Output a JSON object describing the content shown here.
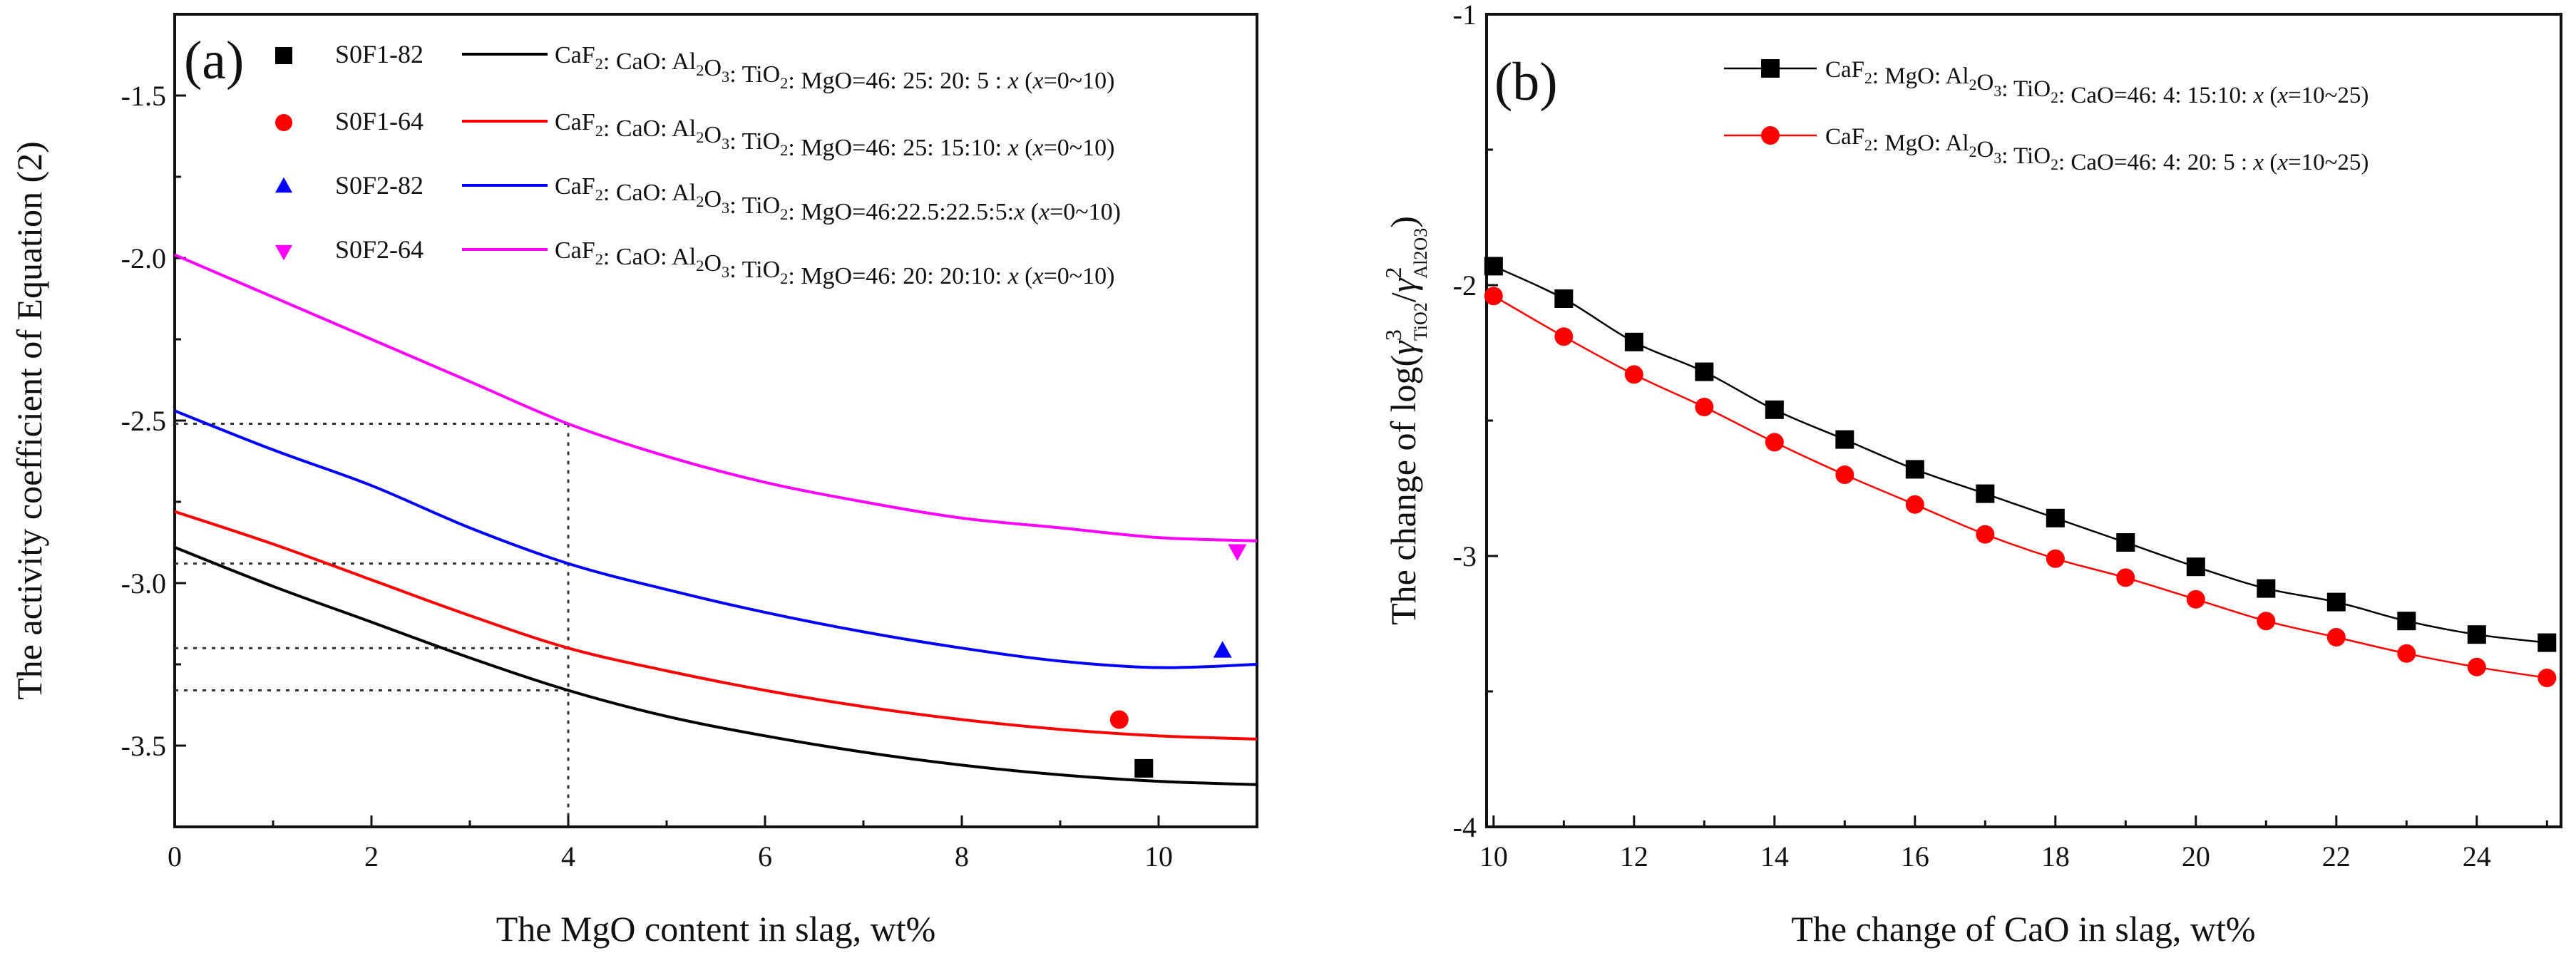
{
  "figure": {
    "panels": [
      "(a)",
      "(b)"
    ]
  },
  "chart_data": [
    {
      "type": "line",
      "panel": "(a)",
      "xlabel": "The MgO content in slag, wt%",
      "ylabel": "The activity coefficient of Equation (2)",
      "xlim": [
        0,
        11
      ],
      "ylim": [
        -3.75,
        -1.25
      ],
      "xticks": [
        0,
        2,
        4,
        6,
        8,
        10
      ],
      "yticks": [
        -3.5,
        -3.0,
        -2.5,
        -2.0,
        -1.5
      ],
      "ytick_labels": [
        "-3.5",
        "-3.0",
        "-2.5",
        "-2.0",
        "-1.5"
      ],
      "series": [
        {
          "name": "CaF2: CaO: Al2O3: TiO2: MgO=46: 25: 20: 5 : x (x=0~10)",
          "legend_parts": [
            "CaF",
            "2",
            ": CaO: Al",
            "2",
            "O",
            "3",
            ": TiO",
            "2",
            ": MgO=46: 25: 20: 5 : ",
            "x",
            " (",
            "x",
            "=0~10)"
          ],
          "color": "#000000",
          "x": [
            0,
            1,
            2,
            3,
            4,
            5,
            6,
            7,
            8,
            9,
            10,
            11
          ],
          "y": [
            -2.89,
            -3.01,
            -3.12,
            -3.23,
            -3.33,
            -3.41,
            -3.47,
            -3.52,
            -3.56,
            -3.59,
            -3.61,
            -3.62
          ]
        },
        {
          "name": "CaF2: CaO: Al2O3: TiO2: MgO=46: 25: 15:10: x (x=0~10)",
          "legend_parts": [
            "CaF",
            "2",
            ": CaO: Al",
            "2",
            "O",
            "3",
            ": TiO",
            "2",
            ": MgO=46: 25: 15:10: ",
            "x",
            " (",
            "x",
            "=0~10)"
          ],
          "color": "#ff0000",
          "x": [
            0,
            1,
            2,
            3,
            4,
            5,
            6,
            7,
            8,
            9,
            10,
            11
          ],
          "y": [
            -2.78,
            -2.88,
            -2.99,
            -3.1,
            -3.2,
            -3.27,
            -3.33,
            -3.38,
            -3.42,
            -3.45,
            -3.47,
            -3.48
          ]
        },
        {
          "name": "CaF2: CaO: Al2O3: TiO2: MgO=46:22.5:22.5:5:x (x=0~10)",
          "legend_parts": [
            "CaF",
            "2",
            ": CaO: Al",
            "2",
            "O",
            "3",
            ": TiO",
            "2",
            ": MgO=46:22.5:22.5:5:",
            "x",
            " (",
            "x",
            "=0~10)"
          ],
          "color": "#0000ff",
          "x": [
            0,
            1,
            2,
            3,
            4,
            5,
            6,
            7,
            8,
            9,
            10,
            11
          ],
          "y": [
            -2.47,
            -2.59,
            -2.7,
            -2.83,
            -2.94,
            -3.02,
            -3.09,
            -3.15,
            -3.2,
            -3.24,
            -3.26,
            -3.25
          ]
        },
        {
          "name": "CaF2: CaO: Al2O3: TiO2: MgO=46: 20: 20:10: x (x=0~10)",
          "legend_parts": [
            "CaF",
            "2",
            ": CaO: Al",
            "2",
            "O",
            "3",
            ": TiO",
            "2",
            ": MgO=46: 20: 20:10: ",
            "x",
            " (",
            "x",
            "=0~10)"
          ],
          "color": "#ff00ff",
          "x": [
            0,
            1,
            2,
            3,
            4,
            5,
            6,
            7,
            8,
            9,
            10,
            11
          ],
          "y": [
            -1.99,
            -2.12,
            -2.25,
            -2.38,
            -2.51,
            -2.61,
            -2.69,
            -2.75,
            -2.8,
            -2.83,
            -2.86,
            -2.87
          ]
        }
      ],
      "points": [
        {
          "name": "S0F1-82",
          "x": 9.85,
          "y": -3.57,
          "marker": "square",
          "color": "#000000"
        },
        {
          "name": "S0F1-64",
          "x": 9.6,
          "y": -3.42,
          "marker": "circle",
          "color": "#ff0000"
        },
        {
          "name": "S0F2-82",
          "x": 10.65,
          "y": -3.21,
          "marker": "triangle-up",
          "color": "#0000ff"
        },
        {
          "name": "S0F2-64",
          "x": 10.8,
          "y": -2.9,
          "marker": "triangle-down",
          "color": "#ff00ff"
        }
      ],
      "guides": {
        "x": 4,
        "y": [
          -2.51,
          -2.94,
          -3.2,
          -3.33
        ]
      },
      "legend": "top-right"
    },
    {
      "type": "line",
      "panel": "(b)",
      "xlabel": "The change of CaO in slag, wt%",
      "ylabel_parts": [
        "The change of log(",
        "γ",
        "3",
        "TiO2",
        "/",
        "γ",
        "2",
        "Al2O3",
        ")"
      ],
      "xlim": [
        9.9,
        25.2
      ],
      "ylim": [
        -4,
        -1
      ],
      "xticks": [
        10,
        12,
        14,
        16,
        18,
        20,
        22,
        24
      ],
      "yticks": [
        -4,
        -3,
        -2,
        -1
      ],
      "ytick_labels": [
        "-4",
        "-3",
        "-2",
        "-1"
      ],
      "series": [
        {
          "name": "CaF2: MgO: Al2O3: TiO2: CaO=46: 4: 15:10: x (x=10~25)",
          "legend_parts": [
            "CaF",
            "2",
            ": MgO: Al",
            "2",
            "O",
            "3",
            ": TiO",
            "2",
            ": CaO=46: 4: 15:10: ",
            "x",
            " (",
            "x",
            "=10~25)"
          ],
          "color": "#000000",
          "marker": "square",
          "x": [
            10,
            11,
            12,
            13,
            14,
            15,
            16,
            17,
            18,
            19,
            20,
            21,
            22,
            23,
            24,
            25
          ],
          "y": [
            -1.93,
            -2.05,
            -2.21,
            -2.32,
            -2.46,
            -2.57,
            -2.68,
            -2.77,
            -2.86,
            -2.95,
            -3.04,
            -3.12,
            -3.17,
            -3.24,
            -3.29,
            -3.32
          ]
        },
        {
          "name": "CaF2: MgO: Al2O3: TiO2: CaO=46: 4: 20: 5 : x (x=10~25)",
          "legend_parts": [
            "CaF",
            "2",
            ": MgO: Al",
            "2",
            "O",
            "3",
            ": TiO",
            "2",
            ": CaO=46: 4: 20: 5 : ",
            "x",
            " (",
            "x",
            "=10~25)"
          ],
          "color": "#ff0000",
          "marker": "circle",
          "x": [
            10,
            11,
            12,
            13,
            14,
            15,
            16,
            17,
            18,
            19,
            20,
            21,
            22,
            23,
            24,
            25
          ],
          "y": [
            -2.04,
            -2.19,
            -2.33,
            -2.45,
            -2.58,
            -2.7,
            -2.81,
            -2.92,
            -3.01,
            -3.08,
            -3.16,
            -3.24,
            -3.3,
            -3.36,
            -3.41,
            -3.45
          ]
        }
      ],
      "legend": "top-right"
    }
  ]
}
